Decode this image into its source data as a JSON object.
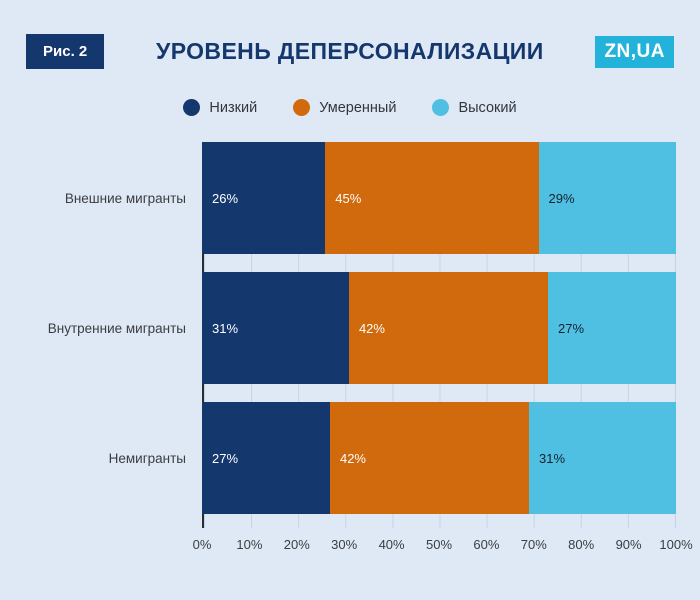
{
  "header": {
    "figure_label": "Рис. 2",
    "title": "УРОВЕНЬ ДЕПЕРСОНАЛИЗАЦИИ",
    "logo": "ZN,UA"
  },
  "colors": {
    "background": "#dfe9f5",
    "navy": "#14386d",
    "orange": "#d1690d",
    "cyan": "#4fc0e2",
    "logo_bg": "#23b3da"
  },
  "chart_data": {
    "type": "bar",
    "variant": "horizontal-stacked",
    "title": "УРОВЕНЬ ДЕПЕРСОНАЛИЗАЦИИ",
    "categories": [
      "Внешние мигранты",
      "Внутренние мигранты",
      "Немигранты"
    ],
    "series": [
      {
        "name": "Низкий",
        "color": "#14386d",
        "text_color": "#ffffff",
        "values": [
          26,
          31,
          27
        ]
      },
      {
        "name": "Умеренный",
        "color": "#d1690d",
        "text_color": "#ffffff",
        "values": [
          45,
          42,
          42
        ]
      },
      {
        "name": "Высокий",
        "color": "#4fc0e2",
        "text_color": "#16212e",
        "values": [
          29,
          27,
          31
        ]
      }
    ],
    "x_ticks": [
      "0%",
      "10%",
      "20%",
      "30%",
      "40%",
      "50%",
      "60%",
      "70%",
      "80%",
      "90%",
      "100%"
    ],
    "xlim": [
      0,
      100
    ],
    "grid": "vertical",
    "legend_position": "top-center"
  }
}
